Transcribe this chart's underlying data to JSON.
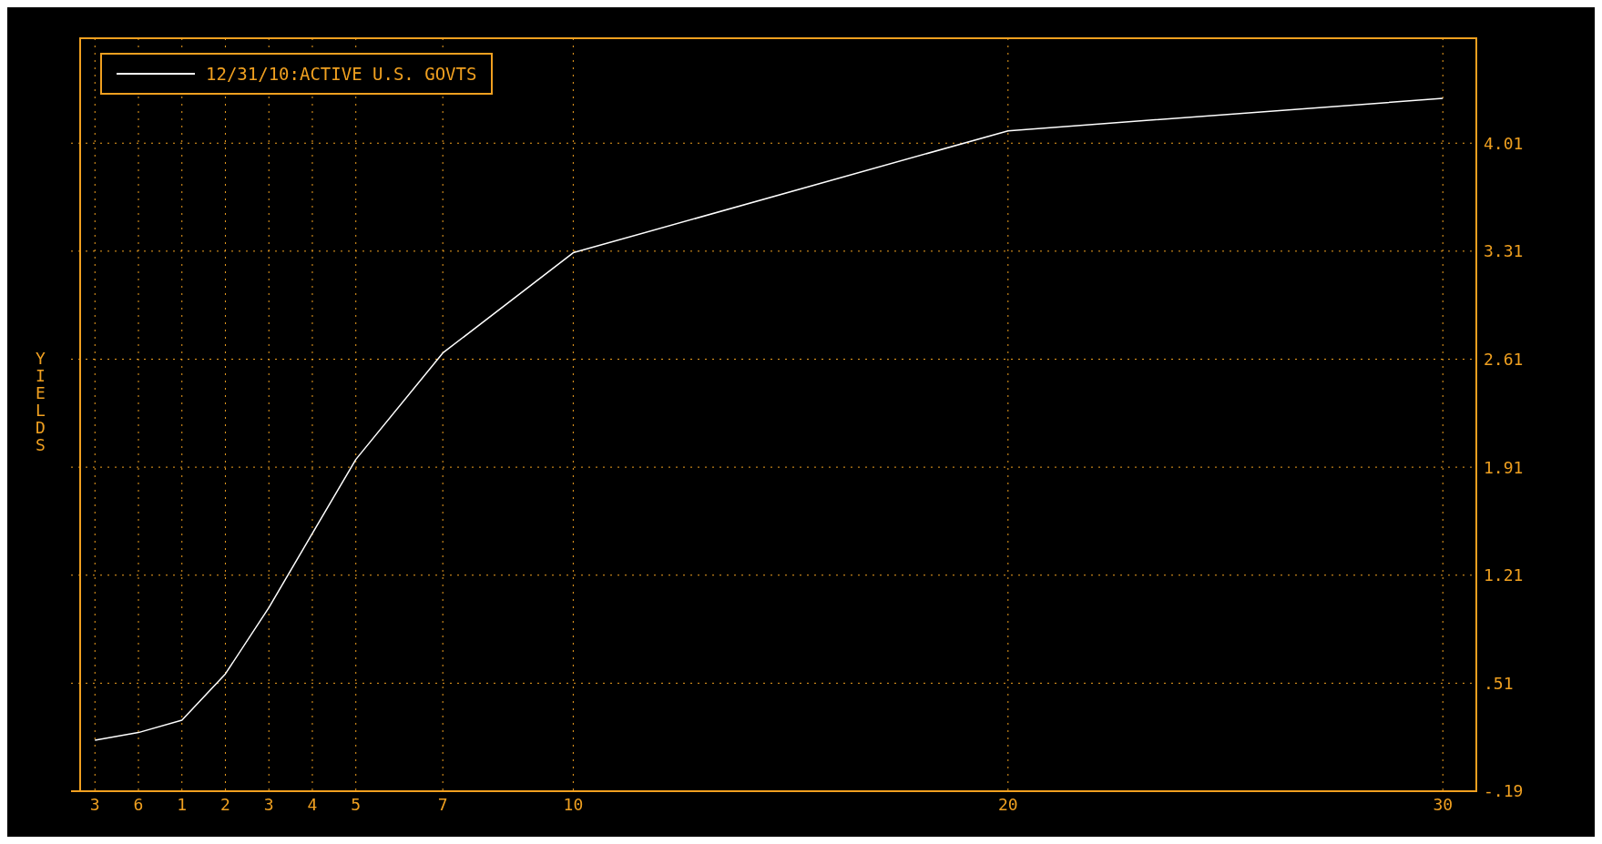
{
  "chart_data": {
    "type": "line",
    "ylabel": "YIELDS",
    "categories": [
      "3",
      "6",
      "1",
      "2",
      "3",
      "4",
      "5",
      null,
      "7",
      null,
      null,
      "10",
      null,
      null,
      null,
      null,
      null,
      null,
      null,
      null,
      null,
      "20",
      null,
      null,
      null,
      null,
      null,
      null,
      null,
      null,
      null,
      "30"
    ],
    "series": [
      {
        "name": "12/31/10:ACTIVE U.S. GOVTS",
        "color": "#ffffff",
        "values": [
          0.14,
          0.19,
          0.27,
          0.57,
          1.0,
          1.48,
          1.96,
          null,
          2.65,
          null,
          null,
          3.3,
          null,
          null,
          null,
          null,
          null,
          null,
          null,
          null,
          null,
          4.09,
          null,
          null,
          null,
          null,
          null,
          null,
          null,
          null,
          null,
          4.3
        ]
      }
    ],
    "ylim": [
      -0.19,
      4.69
    ],
    "yticks": [
      {
        "value": -0.19,
        "label": "-.19"
      },
      {
        "value": 0.51,
        "label": ".51"
      },
      1.21,
      1.91,
      2.61,
      3.31,
      4.01
    ],
    "grid": true,
    "legend": "top left",
    "marker": "none",
    "line_style": "solid"
  }
}
